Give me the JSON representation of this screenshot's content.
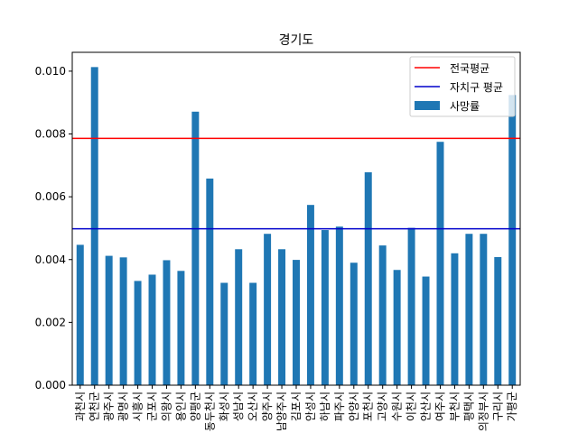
{
  "chart_data": {
    "type": "bar",
    "title": "경기도",
    "xlabel": "",
    "ylabel": "",
    "ylim": [
      0,
      0.0106
    ],
    "yticks": [
      "0.000",
      "0.002",
      "0.004",
      "0.006",
      "0.008",
      "0.010"
    ],
    "ytick_values": [
      0.0,
      0.002,
      0.004,
      0.006,
      0.008,
      0.01
    ],
    "categories": [
      "과천시",
      "연천군",
      "광주시",
      "광명시",
      "시흥시",
      "군포시",
      "의왕시",
      "용인시",
      "양평군",
      "동두천시",
      "화성시",
      "성남시",
      "오산시",
      "양주시",
      "남양주시",
      "김포시",
      "안성시",
      "하남시",
      "파주시",
      "안양시",
      "포천시",
      "고양시",
      "수원시",
      "이천시",
      "안산시",
      "여주시",
      "부천시",
      "평택시",
      "의정부시",
      "구리시",
      "가평군"
    ],
    "series": [
      {
        "name": "사망률",
        "color": "#1f77b4",
        "values": [
          0.00447,
          0.01013,
          0.00412,
          0.00407,
          0.00332,
          0.00352,
          0.00398,
          0.00364,
          0.00871,
          0.00658,
          0.00326,
          0.00433,
          0.00326,
          0.00482,
          0.00433,
          0.00399,
          0.00574,
          0.00494,
          0.00505,
          0.0039,
          0.00678,
          0.00445,
          0.00367,
          0.00501,
          0.00346,
          0.00775,
          0.0042,
          0.00482,
          0.00482,
          0.00408,
          0.00924
        ]
      }
    ],
    "hlines": [
      {
        "name": "전국평균",
        "value": 0.00786,
        "color": "#ff0000"
      },
      {
        "name": "자치구 평균",
        "value": 0.00498,
        "color": "#0000cc"
      }
    ],
    "legend_position": "top-right",
    "grid": false
  }
}
